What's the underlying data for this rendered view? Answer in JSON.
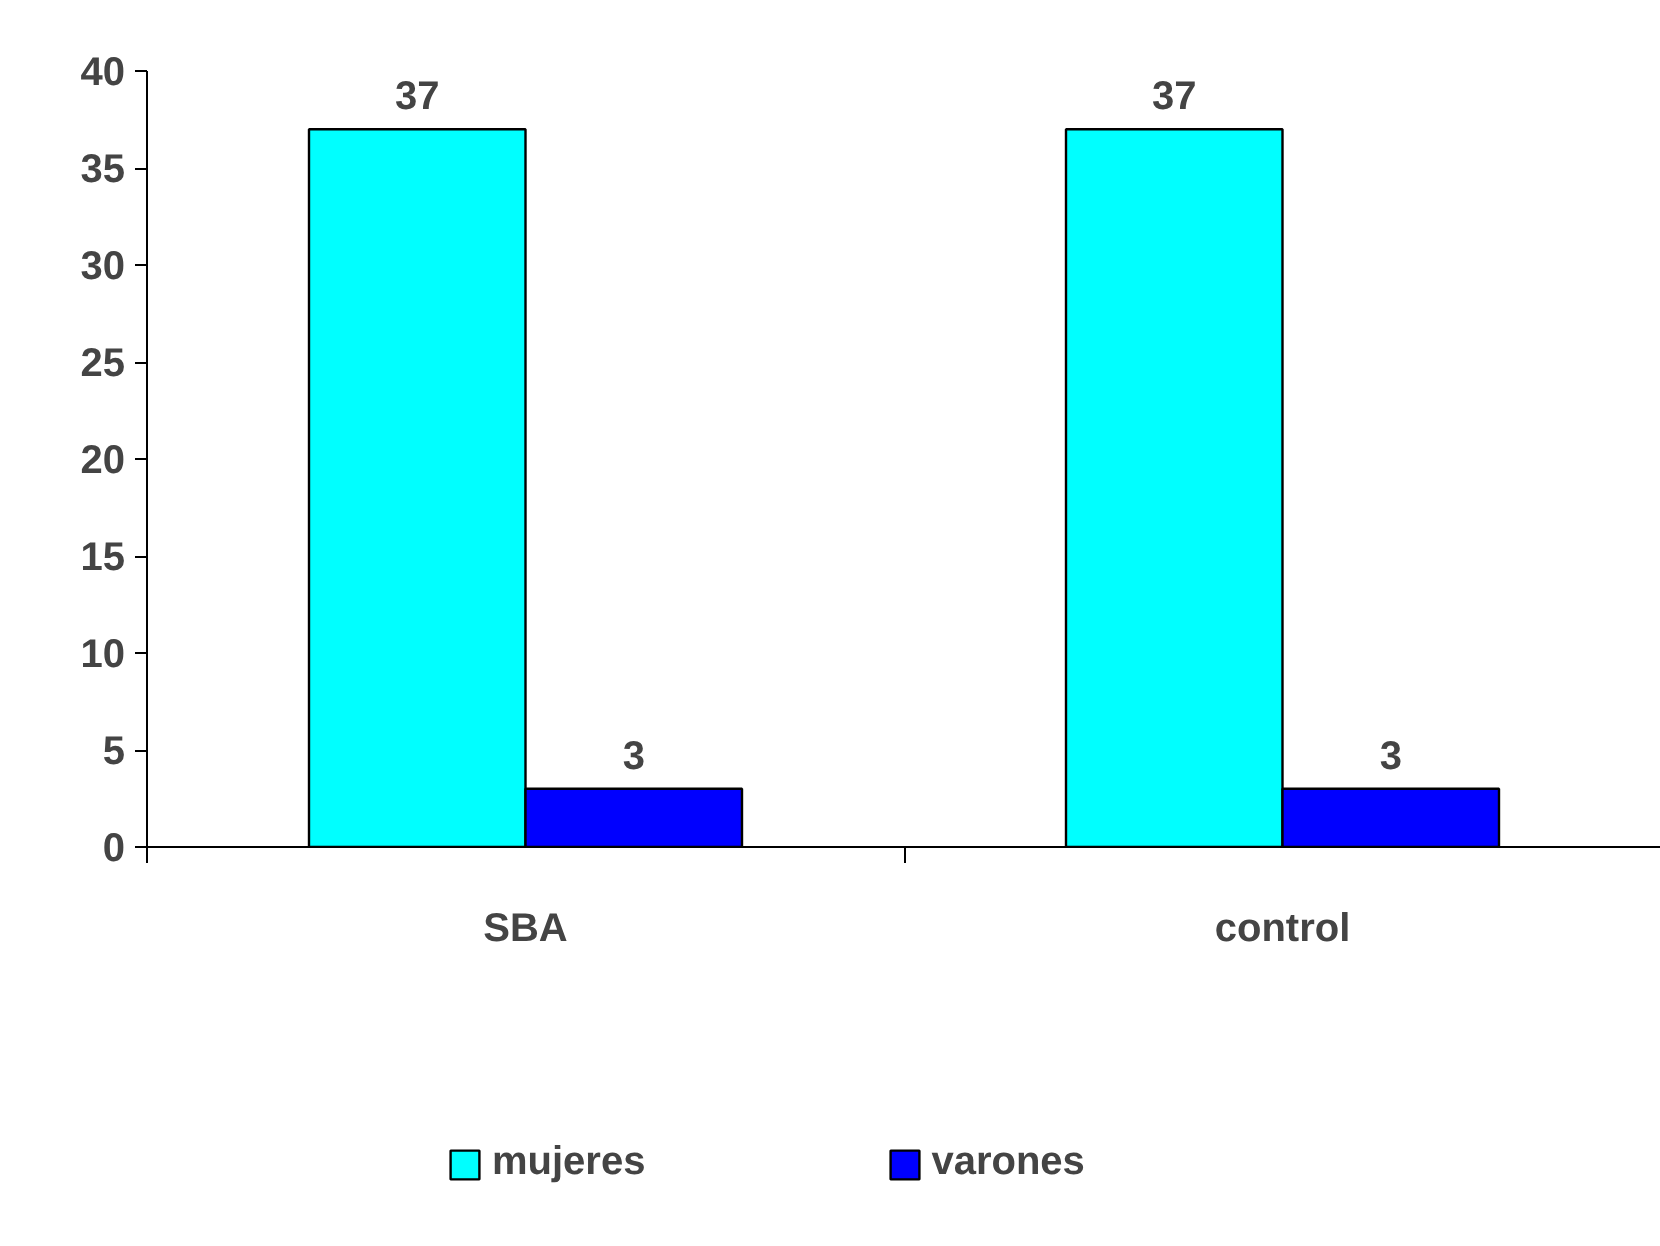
{
  "chart_data": {
    "type": "bar",
    "categories": [
      "SBA",
      "control"
    ],
    "series": [
      {
        "name": "mujeres",
        "color": "#00ffff",
        "values": [
          37,
          37
        ]
      },
      {
        "name": "varones",
        "color": "#0000ff",
        "values": [
          3,
          3
        ]
      }
    ],
    "ylim": [
      0,
      40
    ],
    "yticks": [
      0,
      5,
      10,
      15,
      20,
      25,
      30,
      35,
      40
    ],
    "grid": false,
    "legend": "bottom",
    "data_labels": true
  }
}
